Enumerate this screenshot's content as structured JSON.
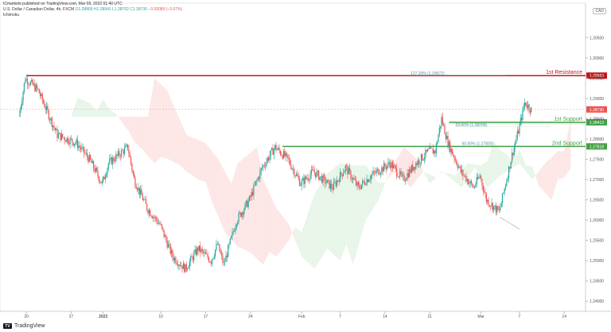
{
  "header": {
    "published": "ICmarkets published on TradingView.com, Mar 09, 2022 01:40 UTC",
    "symbol": "U.S. Dollar / Canadian Dollar, 4h, FXCM",
    "open": "O1.28809",
    "high": "H1.28941",
    "low": "L1.28702",
    "close": "C1.28730",
    "change": "−0.00089 (−0.07%)",
    "indicator": "Ichimoku"
  },
  "currency": "CAD",
  "logo_text": "TradingView",
  "colors": {
    "up": "#26a69a",
    "down": "#ef5350",
    "resistance": "#c2161c",
    "support": "#43a047",
    "cloud_bull": "#e8f5e9",
    "cloud_bear": "#fde7e6",
    "price_line": "#ef9a9a"
  },
  "chart_data": {
    "type": "candlestick",
    "ylim": [
      1.2375,
      1.3135
    ],
    "y_ticks": [
      "1.30500",
      "1.30000",
      "1.29500",
      "1.29000",
      "1.28500",
      "1.28000",
      "1.27500",
      "1.27000",
      "1.26500",
      "1.26000",
      "1.25500",
      "1.25000",
      "1.24500",
      "1.24000"
    ],
    "x_ticks": [
      "20",
      "27",
      "2022",
      "10",
      "17",
      "24",
      "Feb",
      "7",
      "14",
      "21",
      "Mar",
      "7",
      "14"
    ],
    "levels": [
      {
        "label": "1st Resistance",
        "value": 1.29563,
        "value_text": "1.29563",
        "kind": "resistance"
      },
      {
        "label": "1st Support",
        "value": 1.28413,
        "value_text": "1.28413",
        "kind": "support"
      },
      {
        "label": "2nd Support",
        "value": 1.27818,
        "value_text": "1.27818",
        "kind": "support"
      }
    ],
    "current_price": {
      "value": 1.2873,
      "value_text": "1.28730"
    },
    "fib_labels": [
      {
        "text": "127.20% (1.29572)",
        "value": 1.29572,
        "date": "2022-02-18"
      },
      {
        "text": "23.60% (1.28299)",
        "value": 1.28299,
        "date": "2022-02-25"
      },
      {
        "text": "50.00% (1.27830)",
        "value": 1.2783,
        "date": "2022-02-26"
      }
    ],
    "trend_line": {
      "from": {
        "date": "2022-03-04",
        "value": 1.2595
      },
      "to": {
        "date": "2022-03-07",
        "value": 1.2578
      }
    },
    "series": [
      {
        "date": "2021-12-19",
        "value": 1.2855
      },
      {
        "date": "2021-12-20",
        "value": 1.295
      },
      {
        "date": "2021-12-22",
        "value": 1.292
      },
      {
        "date": "2021-12-25",
        "value": 1.281
      },
      {
        "date": "2021-12-28",
        "value": 1.279
      },
      {
        "date": "2021-12-30",
        "value": 1.275
      },
      {
        "date": "2022-01-01",
        "value": 1.269
      },
      {
        "date": "2022-01-02",
        "value": 1.274
      },
      {
        "date": "2022-01-05",
        "value": 1.278
      },
      {
        "date": "2022-01-06",
        "value": 1.27
      },
      {
        "date": "2022-01-08",
        "value": 1.263
      },
      {
        "date": "2022-01-10",
        "value": 1.259
      },
      {
        "date": "2022-01-12",
        "value": 1.251
      },
      {
        "date": "2022-01-14",
        "value": 1.248
      },
      {
        "date": "2022-01-16",
        "value": 1.253
      },
      {
        "date": "2022-01-18",
        "value": 1.25
      },
      {
        "date": "2022-01-19",
        "value": 1.254
      },
      {
        "date": "2022-01-20",
        "value": 1.249
      },
      {
        "date": "2022-01-22",
        "value": 1.26
      },
      {
        "date": "2022-01-24",
        "value": 1.265
      },
      {
        "date": "2022-01-26",
        "value": 1.273
      },
      {
        "date": "2022-01-28",
        "value": 1.278
      },
      {
        "date": "2022-01-30",
        "value": 1.275
      },
      {
        "date": "2022-02-01",
        "value": 1.269
      },
      {
        "date": "2022-02-03",
        "value": 1.272
      },
      {
        "date": "2022-02-06",
        "value": 1.268
      },
      {
        "date": "2022-02-08",
        "value": 1.273
      },
      {
        "date": "2022-02-10",
        "value": 1.268
      },
      {
        "date": "2022-02-12",
        "value": 1.271
      },
      {
        "date": "2022-02-15",
        "value": 1.274
      },
      {
        "date": "2022-02-17",
        "value": 1.27
      },
      {
        "date": "2022-02-19",
        "value": 1.274
      },
      {
        "date": "2022-02-21",
        "value": 1.277
      },
      {
        "date": "2022-02-22",
        "value": 1.277
      },
      {
        "date": "2022-02-23",
        "value": 1.285
      },
      {
        "date": "2022-02-24",
        "value": 1.279
      },
      {
        "date": "2022-02-26",
        "value": 1.272
      },
      {
        "date": "2022-02-28",
        "value": 1.268
      },
      {
        "date": "2022-03-01",
        "value": 1.271
      },
      {
        "date": "2022-03-02",
        "value": 1.265
      },
      {
        "date": "2022-03-04",
        "value": 1.262
      },
      {
        "date": "2022-03-05",
        "value": 1.269
      },
      {
        "date": "2022-03-06",
        "value": 1.276
      },
      {
        "date": "2022-03-07",
        "value": 1.282
      },
      {
        "date": "2022-03-08",
        "value": 1.289
      },
      {
        "date": "2022-03-09",
        "value": 1.2873
      }
    ]
  }
}
